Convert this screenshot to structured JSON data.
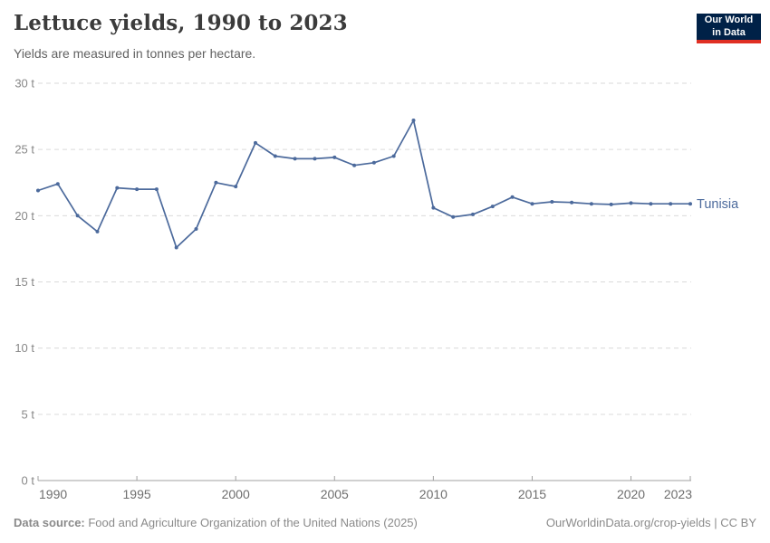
{
  "header": {
    "title": "Lettuce yields, 1990 to 2023",
    "subtitle": "Yields are measured in tonnes per hectare.",
    "logo_line1": "Our World",
    "logo_line2": "in Data"
  },
  "chart_data": {
    "type": "line",
    "title": "Lettuce yields, 1990 to 2023",
    "xlabel": "",
    "ylabel": "tonnes per hectare",
    "xlim": [
      1990,
      2023
    ],
    "ylim": [
      0,
      30
    ],
    "grid": "horizontal-dashed",
    "legend_position": "end-of-line-label",
    "x_ticks": [
      1990,
      1995,
      2000,
      2005,
      2010,
      2015,
      2020,
      2023
    ],
    "y_ticks": [
      0,
      5,
      10,
      15,
      20,
      25,
      30
    ],
    "y_tick_suffix": " t",
    "series": [
      {
        "name": "Tunisia",
        "color": "#4C6A9C",
        "x": [
          1990,
          1991,
          1992,
          1993,
          1994,
          1995,
          1996,
          1997,
          1998,
          1999,
          2000,
          2001,
          2002,
          2003,
          2004,
          2005,
          2006,
          2007,
          2008,
          2009,
          2010,
          2011,
          2012,
          2013,
          2014,
          2015,
          2016,
          2017,
          2018,
          2019,
          2020,
          2021,
          2022,
          2023
        ],
        "values": [
          21.9,
          22.4,
          20.0,
          18.8,
          22.1,
          22.0,
          22.0,
          17.6,
          19.0,
          22.5,
          22.2,
          25.5,
          24.5,
          24.3,
          24.3,
          24.4,
          23.8,
          24.0,
          24.5,
          27.2,
          20.6,
          19.9,
          20.1,
          20.7,
          21.4,
          20.9,
          21.05,
          21.0,
          20.9,
          20.85,
          20.95,
          20.9,
          20.9,
          20.9
        ]
      }
    ]
  },
  "footer": {
    "source_label": "Data source:",
    "source_text": " Food and Agriculture Organization of the United Nations (2025)",
    "right_text": "OurWorldinData.org/crop-yields | CC BY"
  },
  "colors": {
    "line": "#4C6A9C",
    "grid": "#dadada",
    "axis": "#a0a0a0",
    "y_label": "#888888",
    "x_label": "#6e6e6e",
    "logo_bg": "#002147",
    "logo_red": "#E02F23",
    "title_text": "#3b3b3b",
    "subtitle_text": "#616161"
  }
}
